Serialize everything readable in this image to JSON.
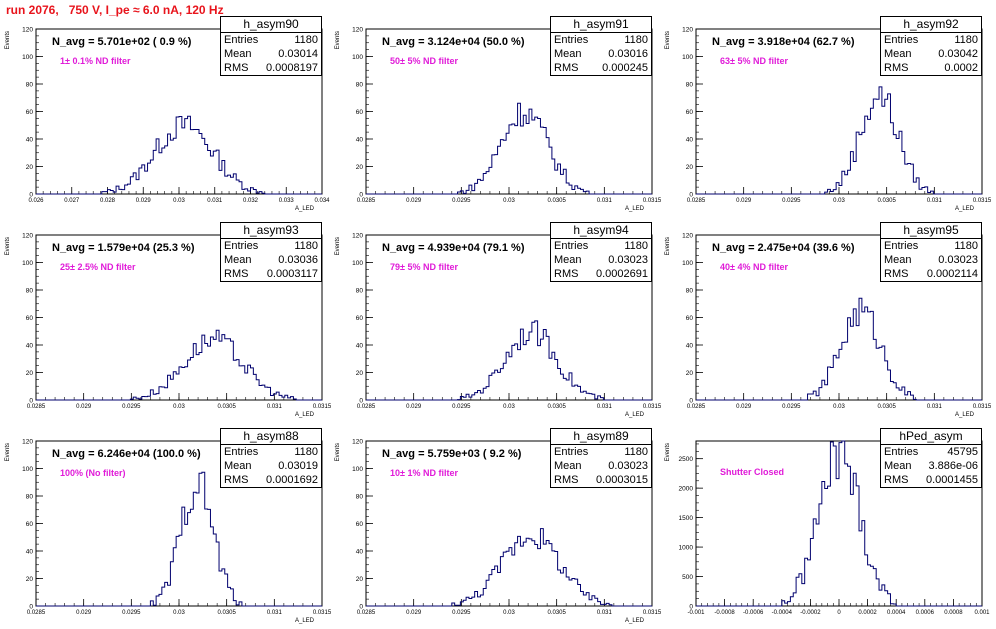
{
  "run_title": "run 2076,   750 V, I_pe ≈ 6.0 nA, 120 Hz",
  "chart_data": [
    {
      "type": "bar",
      "histogram": "h_asym90",
      "n_avg": "N_avg = 5.701e+02 ( 0.9 %)",
      "filter": "1± 0.1% ND filter",
      "stats": {
        "entries": "1180",
        "mean": "0.03014",
        "rms": "0.0008197"
      },
      "stat_labels": {
        "entries": "Entries",
        "mean": "Mean",
        "rms": "RMS"
      },
      "ylabel": "Events",
      "xlabel": "A_LED",
      "xlim": [
        0.026,
        0.034
      ],
      "ylim": [
        0,
        120
      ],
      "xticks": [
        0.026,
        0.027,
        0.028,
        0.029,
        0.03,
        0.031,
        0.032,
        0.033,
        0.034
      ],
      "xtick_labels": [
        "0.026",
        "0.027",
        "0.028",
        "0.029",
        "0.03",
        "0.031",
        "0.032",
        "0.033",
        "0.034"
      ],
      "yticks": [
        0,
        20,
        40,
        60,
        80,
        100,
        120
      ],
      "ytick_labels": [
        "0",
        "20",
        "40",
        "60",
        "80",
        "100",
        "120"
      ],
      "mean": 0.03014,
      "sigma": 0.00082,
      "peak": 50
    },
    {
      "type": "bar",
      "histogram": "h_asym91",
      "n_avg": "N_avg = 3.124e+04 (50.0 %)",
      "filter": "50± 5% ND filter",
      "stats": {
        "entries": "1180",
        "mean": "0.03016",
        "rms": "0.000245"
      },
      "stat_labels": {
        "entries": "Entries",
        "mean": "Mean",
        "rms": "RMS"
      },
      "ylabel": "Events",
      "xlabel": "A_LED",
      "xlim": [
        0.0285,
        0.0315
      ],
      "ylim": [
        0,
        120
      ],
      "xticks": [
        0.0285,
        0.029,
        0.0295,
        0.03,
        0.0305,
        0.031,
        0.0315
      ],
      "xtick_labels": [
        "0.0285",
        "0.029",
        "0.0295",
        "0.03",
        "0.0305",
        "0.031",
        "0.0315"
      ],
      "yticks": [
        0,
        20,
        40,
        60,
        80,
        100,
        120
      ],
      "ytick_labels": [
        "0",
        "20",
        "40",
        "60",
        "80",
        "100",
        "120"
      ],
      "mean": 0.03016,
      "sigma": 0.000245,
      "peak": 60
    },
    {
      "type": "bar",
      "histogram": "h_asym92",
      "n_avg": "N_avg = 3.918e+04 (62.7 %)",
      "filter": "63± 5% ND filter",
      "stats": {
        "entries": "1180",
        "mean": "0.03042",
        "rms": "0.0002"
      },
      "stat_labels": {
        "entries": "Entries",
        "mean": "Mean",
        "rms": "RMS"
      },
      "ylabel": "Events",
      "xlabel": "A_LED",
      "xlim": [
        0.0285,
        0.0315
      ],
      "ylim": [
        0,
        120
      ],
      "xticks": [
        0.0285,
        0.029,
        0.0295,
        0.03,
        0.0305,
        0.031,
        0.0315
      ],
      "xtick_labels": [
        "0.0285",
        "0.029",
        "0.0295",
        "0.03",
        "0.0305",
        "0.031",
        "0.0315"
      ],
      "yticks": [
        0,
        20,
        40,
        60,
        80,
        100,
        120
      ],
      "ytick_labels": [
        "0",
        "20",
        "40",
        "60",
        "80",
        "100",
        "120"
      ],
      "mean": 0.03042,
      "sigma": 0.0002,
      "peak": 72
    },
    {
      "type": "bar",
      "histogram": "h_asym93",
      "n_avg": "N_avg = 1.579e+04 (25.3 %)",
      "filter": "25± 2.5% ND filter",
      "stats": {
        "entries": "1180",
        "mean": "0.03036",
        "rms": "0.0003117"
      },
      "stat_labels": {
        "entries": "Entries",
        "mean": "Mean",
        "rms": "RMS"
      },
      "ylabel": "Events",
      "xlabel": "A_LED",
      "xlim": [
        0.0285,
        0.0315
      ],
      "ylim": [
        0,
        120
      ],
      "xticks": [
        0.0285,
        0.029,
        0.0295,
        0.03,
        0.0305,
        0.031,
        0.0315
      ],
      "xtick_labels": [
        "0.0285",
        "0.029",
        "0.0295",
        "0.03",
        "0.0305",
        "0.031",
        "0.0315"
      ],
      "yticks": [
        0,
        20,
        40,
        60,
        80,
        100,
        120
      ],
      "ytick_labels": [
        "0",
        "20",
        "40",
        "60",
        "80",
        "100",
        "120"
      ],
      "mean": 0.03036,
      "sigma": 0.00031,
      "peak": 44
    },
    {
      "type": "bar",
      "histogram": "h_asym94",
      "n_avg": "N_avg = 4.939e+04 (79.1 %)",
      "filter": "79± 5% ND filter",
      "stats": {
        "entries": "1180",
        "mean": "0.03023",
        "rms": "0.0002691"
      },
      "stat_labels": {
        "entries": "Entries",
        "mean": "Mean",
        "rms": "RMS"
      },
      "ylabel": "Events",
      "xlabel": "A_LED",
      "xlim": [
        0.0285,
        0.0315
      ],
      "ylim": [
        0,
        120
      ],
      "xticks": [
        0.0285,
        0.029,
        0.0295,
        0.03,
        0.0305,
        0.031,
        0.0315
      ],
      "xtick_labels": [
        "0.0285",
        "0.029",
        "0.0295",
        "0.03",
        "0.0305",
        "0.031",
        "0.0315"
      ],
      "yticks": [
        0,
        20,
        40,
        60,
        80,
        100,
        120
      ],
      "ytick_labels": [
        "0",
        "20",
        "40",
        "60",
        "80",
        "100",
        "120"
      ],
      "mean": 0.03023,
      "sigma": 0.00027,
      "peak": 50
    },
    {
      "type": "bar",
      "histogram": "h_asym95",
      "n_avg": "N_avg = 2.475e+04 (39.6 %)",
      "filter": "40± 4% ND filter",
      "stats": {
        "entries": "1180",
        "mean": "0.03023",
        "rms": "0.0002114"
      },
      "stat_labels": {
        "entries": "Entries",
        "mean": "Mean",
        "rms": "RMS"
      },
      "ylabel": "Events",
      "xlabel": "A_LED",
      "xlim": [
        0.0285,
        0.0315
      ],
      "ylim": [
        0,
        120
      ],
      "xticks": [
        0.0285,
        0.029,
        0.0295,
        0.03,
        0.0305,
        0.031,
        0.0315
      ],
      "xtick_labels": [
        "0.0285",
        "0.029",
        "0.0295",
        "0.03",
        "0.0305",
        "0.031",
        "0.0315"
      ],
      "yticks": [
        0,
        20,
        40,
        60,
        80,
        100,
        120
      ],
      "ytick_labels": [
        "0",
        "20",
        "40",
        "60",
        "80",
        "100",
        "120"
      ],
      "mean": 0.03023,
      "sigma": 0.00021,
      "peak": 65
    },
    {
      "type": "bar",
      "histogram": "h_asym88",
      "n_avg": "N_avg = 6.246e+04 (100.0 %)",
      "filter": "100% (No filter)",
      "stats": {
        "entries": "1180",
        "mean": "0.03019",
        "rms": "0.0001692"
      },
      "stat_labels": {
        "entries": "Entries",
        "mean": "Mean",
        "rms": "RMS"
      },
      "ylabel": "Events",
      "xlabel": "A_LED",
      "xlim": [
        0.0285,
        0.0315
      ],
      "ylim": [
        0,
        120
      ],
      "xticks": [
        0.0285,
        0.029,
        0.0295,
        0.03,
        0.0305,
        0.031,
        0.0315
      ],
      "xtick_labels": [
        "0.0285",
        "0.029",
        "0.0295",
        "0.03",
        "0.0305",
        "0.031",
        "0.0315"
      ],
      "yticks": [
        0,
        20,
        40,
        60,
        80,
        100,
        120
      ],
      "ytick_labels": [
        "0",
        "20",
        "40",
        "60",
        "80",
        "100",
        "120"
      ],
      "mean": 0.03019,
      "sigma": 0.00017,
      "peak": 90
    },
    {
      "type": "bar",
      "histogram": "h_asym89",
      "n_avg": "N_avg = 5.759e+03 ( 9.2 %)",
      "filter": "10± 1% ND filter",
      "stats": {
        "entries": "1180",
        "mean": "0.03023",
        "rms": "0.0003015"
      },
      "stat_labels": {
        "entries": "Entries",
        "mean": "Mean",
        "rms": "RMS"
      },
      "ylabel": "Events",
      "xlabel": "A_LED",
      "xlim": [
        0.0285,
        0.0315
      ],
      "ylim": [
        0,
        120
      ],
      "xticks": [
        0.0285,
        0.029,
        0.0295,
        0.03,
        0.0305,
        0.031,
        0.0315
      ],
      "xtick_labels": [
        "0.0285",
        "0.029",
        "0.0295",
        "0.03",
        "0.0305",
        "0.031",
        "0.0315"
      ],
      "yticks": [
        0,
        20,
        40,
        60,
        80,
        100,
        120
      ],
      "ytick_labels": [
        "0",
        "20",
        "40",
        "60",
        "80",
        "100",
        "120"
      ],
      "mean": 0.03023,
      "sigma": 0.0003,
      "peak": 52
    },
    {
      "type": "bar",
      "histogram": "hPed_asym",
      "n_avg": "",
      "filter": "Shutter Closed",
      "stats": {
        "entries": "45795",
        "mean": "3.886e-06",
        "rms": "0.0001455"
      },
      "stat_labels": {
        "entries": "Entries",
        "mean": "Mean",
        "rms": "RMS"
      },
      "ylabel": "Events",
      "xlabel": "",
      "xlim": [
        -0.001,
        0.001
      ],
      "ylim": [
        0,
        2800
      ],
      "xticks": [
        -0.001,
        -0.0008,
        -0.0006,
        -0.0004,
        -0.0002,
        0,
        0.0002,
        0.0004,
        0.0006,
        0.0008,
        0.001
      ],
      "xtick_labels": [
        "-0.001",
        "-0.0008",
        "-0.0006",
        "-0.0004",
        "-0.0002",
        "0",
        "0.0002",
        "0.0004",
        "0.0006",
        "0.0008",
        "0.001"
      ],
      "yticks": [
        0,
        500,
        1000,
        1500,
        2000,
        2500
      ],
      "ytick_labels": [
        "0",
        "500",
        "1000",
        "1500",
        "2000",
        "2500"
      ],
      "mean": 3.9e-06,
      "sigma": 0.000145,
      "peak": 2580
    }
  ]
}
